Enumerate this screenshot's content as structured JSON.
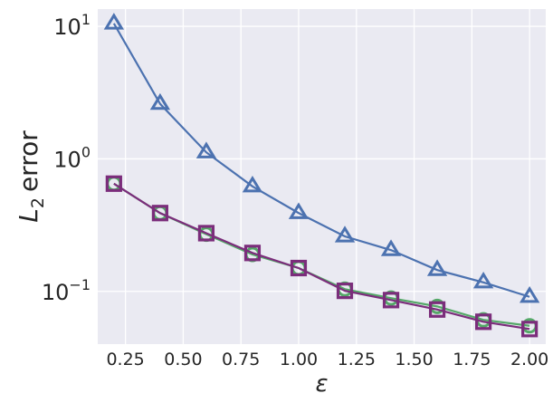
{
  "chart_data": {
    "type": "line",
    "title": "",
    "xlabel": "ε",
    "ylabel": "error",
    "ylabel_prefix": "L",
    "ylabel_subscript": "2",
    "yscale": "log",
    "xlim": [
      0.13,
      2.07
    ],
    "ylim": [
      0.04,
      13.5
    ],
    "grid": true,
    "legend": "none",
    "background_color": "#EAEAF2",
    "grid_color": "#FFFFFF",
    "x_tick_labels": [
      {
        "value": 0.25,
        "label": "0.25"
      },
      {
        "value": 0.5,
        "label": "0.50"
      },
      {
        "value": 0.75,
        "label": "0.75"
      },
      {
        "value": 1.0,
        "label": "1.00"
      },
      {
        "value": 1.25,
        "label": "1.25"
      },
      {
        "value": 1.5,
        "label": "1.50"
      },
      {
        "value": 1.75,
        "label": "1.75"
      },
      {
        "value": 2.0,
        "label": "2.00"
      }
    ],
    "y_tick_labels": [
      {
        "value": 0.1,
        "base": "10",
        "exponent": "−1"
      },
      {
        "value": 1,
        "base": "10",
        "exponent": "0"
      },
      {
        "value": 10,
        "base": "10",
        "exponent": "1"
      }
    ],
    "x": [
      0.2,
      0.4,
      0.6,
      0.8,
      1.0,
      1.2,
      1.4,
      1.6,
      1.8,
      2.0
    ],
    "series": [
      {
        "marker": "triangle",
        "color": "#4C72B0",
        "values": [
          10.5,
          2.6,
          1.12,
          0.62,
          0.39,
          0.26,
          0.205,
          0.145,
          0.117,
          0.091
        ]
      },
      {
        "marker": "circle",
        "color": "#55A868",
        "values": [
          0.65,
          0.39,
          0.27,
          0.19,
          0.15,
          0.104,
          0.089,
          0.077,
          0.061,
          0.055
        ]
      },
      {
        "marker": "square",
        "color": "#7B2D7B",
        "values": [
          0.65,
          0.39,
          0.275,
          0.195,
          0.15,
          0.101,
          0.086,
          0.073,
          0.059,
          0.052
        ]
      }
    ]
  }
}
